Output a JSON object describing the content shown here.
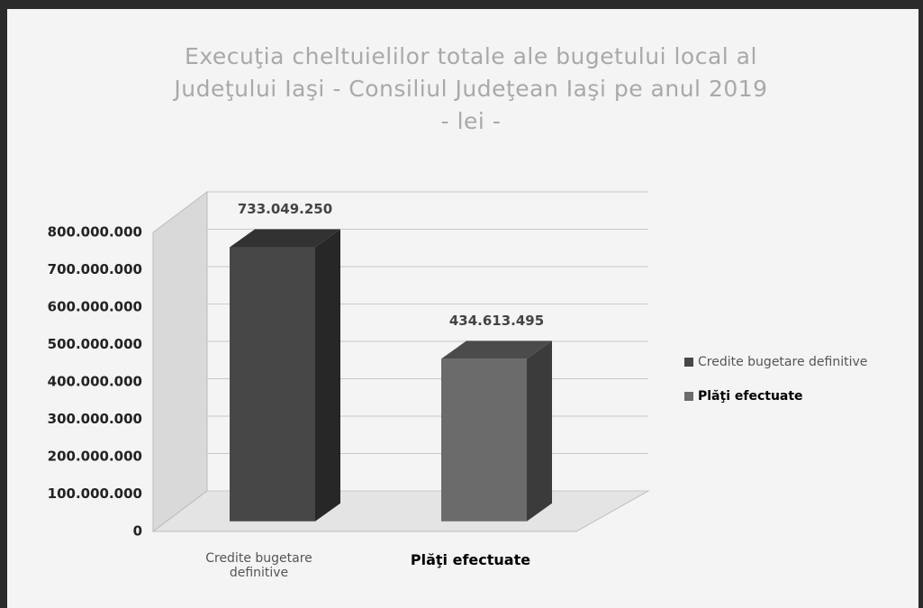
{
  "chart_data": {
    "type": "bar3d",
    "title": "Execuţia   cheltuielilor totale ale  bugetului local al\nJudeţului Iaşi - Consiliul Judeţean Iaşi pe anul 2019\n- lei -",
    "categories": [
      "Credite bugetare definitive",
      "Plăţi efectuate"
    ],
    "series": [
      {
        "name": "Credite bugetare definitive",
        "color": "#474747",
        "values": [
          733049250,
          null
        ],
        "value_labels": [
          "733.049.250",
          null
        ]
      },
      {
        "name": "Plăţi efectuate",
        "color": "#6b6b6b",
        "values": [
          null,
          434613495
        ],
        "value_labels": [
          null,
          "434.613.495"
        ]
      }
    ],
    "ylim": [
      0,
      800000000
    ],
    "yticks": [
      {
        "value": 0,
        "label": "0"
      },
      {
        "value": 100000000,
        "label": "100.000.000"
      },
      {
        "value": 200000000,
        "label": "200.000.000"
      },
      {
        "value": 300000000,
        "label": "300.000.000"
      },
      {
        "value": 400000000,
        "label": "400.000.000"
      },
      {
        "value": 500000000,
        "label": "500.000.000"
      },
      {
        "value": 600000000,
        "label": "600.000.000"
      },
      {
        "value": 700000000,
        "label": "700.000.000"
      },
      {
        "value": 800000000,
        "label": "800.000.000"
      }
    ],
    "grid": true,
    "legend": "right"
  }
}
